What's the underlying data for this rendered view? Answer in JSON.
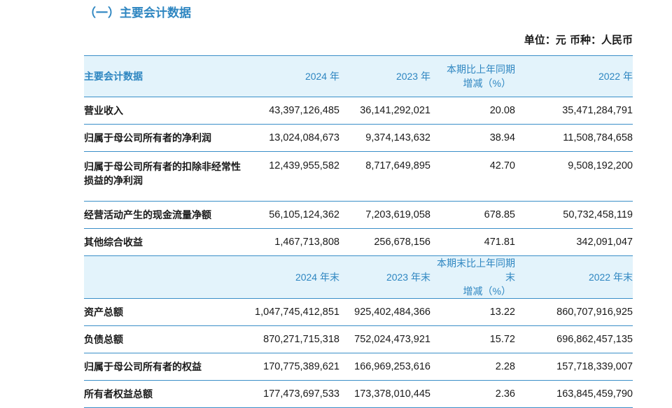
{
  "section_title": "（一）主要会计数据",
  "unit_line": "单位：元  币种：人民币",
  "header1": {
    "label": "主要会计数据",
    "c1": "2024 年",
    "c2": "2023 年",
    "c3_line1": "本期比上年同期",
    "c3_line2": "增减（%）",
    "c4": "2022 年"
  },
  "rows1": [
    {
      "label": "营业收入",
      "v2024": "43,397,126,485",
      "v2023": "36,141,292,021",
      "change": "20.08",
      "v2022": "35,471,284,791"
    },
    {
      "label": "归属于母公司所有者的净利润",
      "v2024": "13,024,084,673",
      "v2023": "9,374,143,632",
      "change": "38.94",
      "v2022": "11,508,784,658"
    },
    {
      "label_line1": "归属于母公司所有者的扣除非经常性",
      "label_line2": "损益的净利润",
      "v2024": "12,439,955,582",
      "v2023": "8,717,649,895",
      "change": "42.70",
      "v2022": "9,508,192,200"
    },
    {
      "label": "经营活动产生的现金流量净额",
      "v2024": "56,105,124,362",
      "v2023": "7,203,619,058",
      "change": "678.85",
      "v2022": "50,732,458,119"
    },
    {
      "label": "其他综合收益",
      "v2024": "1,467,713,808",
      "v2023": "256,678,156",
      "change": "471.81",
      "v2022": "342,091,047"
    }
  ],
  "header2": {
    "label": "",
    "c1": "2024 年末",
    "c2": "2023 年末",
    "c3_line1": "本期末比上年同期末",
    "c3_line2": "增减（%）",
    "c4": "2022 年末"
  },
  "rows2": [
    {
      "label": "资产总额",
      "v2024": "1,047,745,412,851",
      "v2023": "925,402,484,366",
      "change": "13.22",
      "v2022": "860,707,916,925"
    },
    {
      "label": "负债总额",
      "v2024": "870,271,715,318",
      "v2023": "752,024,473,921",
      "change": "15.72",
      "v2022": "696,862,457,135"
    },
    {
      "label": "归属于母公司所有者的权益",
      "v2024": "170,775,389,621",
      "v2023": "166,969,253,616",
      "change": "2.28",
      "v2022": "157,718,339,007"
    },
    {
      "label": "所有者权益总额",
      "v2024": "177,473,697,533",
      "v2023": "173,378,010,445",
      "change": "2.36",
      "v2022": "163,845,459,790"
    }
  ]
}
